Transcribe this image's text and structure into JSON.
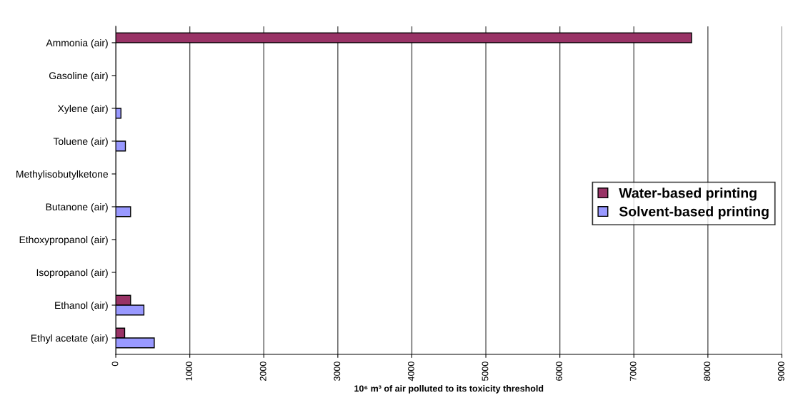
{
  "chart_data": {
    "type": "bar",
    "orientation": "horizontal",
    "categories": [
      "Ammonia (air)",
      "Gasoline (air)",
      "Xylene (air)",
      "Toluene (air)",
      "Methylisobutylketone",
      "Butanone (air)",
      "Ethoxypropanol (air)",
      "Isopropanol (air)",
      "Ethanol (air)",
      "Ethyl acetate (air)"
    ],
    "series": [
      {
        "name": "Water-based printing",
        "color": "#993366",
        "values": [
          7780,
          null,
          null,
          null,
          null,
          null,
          null,
          null,
          200,
          120
        ]
      },
      {
        "name": "Solvent-based printing",
        "color": "#9999ff",
        "values": [
          null,
          null,
          70,
          130,
          null,
          200,
          null,
          null,
          380,
          520
        ]
      }
    ],
    "xlabel": "10⁶ m³ of air polluted to its toxicity threshold",
    "xlim": [
      0,
      9000
    ],
    "xticks": [
      0,
      1000,
      2000,
      3000,
      4000,
      5000,
      6000,
      7000,
      8000,
      9000
    ],
    "grid": "x",
    "legend": "right"
  }
}
